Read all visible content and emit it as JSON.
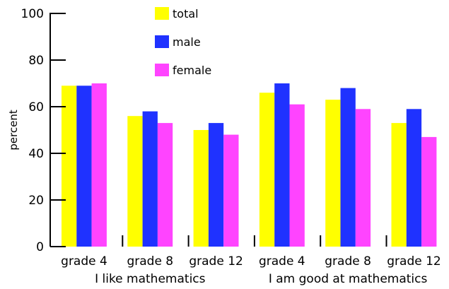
{
  "chart_data": {
    "type": "bar",
    "ylabel": "percent",
    "ylim": [
      0,
      100
    ],
    "yticks": [
      0,
      20,
      40,
      60,
      80,
      100
    ],
    "grid": false,
    "legend_position": "top-center",
    "groups": [
      {
        "label": "I like mathematics",
        "categories": [
          "grade 4",
          "grade 8",
          "grade 12"
        ]
      },
      {
        "label": "I am good at mathematics",
        "categories": [
          "grade 4",
          "grade 8",
          "grade 12"
        ]
      }
    ],
    "categories": [
      "grade 4",
      "grade 8",
      "grade 12",
      "grade 4",
      "grade 8",
      "grade 12"
    ],
    "series": [
      {
        "name": "total",
        "color": "#ffff00",
        "values": [
          69,
          56,
          50,
          66,
          63,
          53
        ]
      },
      {
        "name": "male",
        "color": "#1f32ff",
        "values": [
          69,
          58,
          53,
          70,
          68,
          59
        ]
      },
      {
        "name": "female",
        "color": "#ff44ff",
        "values": [
          70,
          53,
          48,
          61,
          59,
          47
        ]
      }
    ]
  }
}
